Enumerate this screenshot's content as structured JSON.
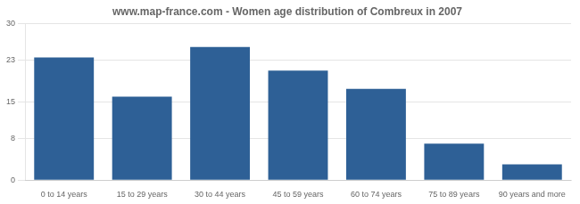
{
  "chart_data": {
    "type": "bar",
    "title": "www.map-france.com - Women age distribution of Combreux in 2007",
    "categories": [
      "0 to 14 years",
      "15 to 29 years",
      "30 to 44 years",
      "45 to 59 years",
      "60 to 74 years",
      "75 to 89 years",
      "90 years and more"
    ],
    "values": [
      23.5,
      16,
      25.5,
      21,
      17.5,
      7,
      3
    ],
    "color": "#2e6096",
    "ylim": [
      0,
      30
    ],
    "yticks": [
      0,
      8,
      15,
      23,
      30
    ],
    "grid": true
  }
}
